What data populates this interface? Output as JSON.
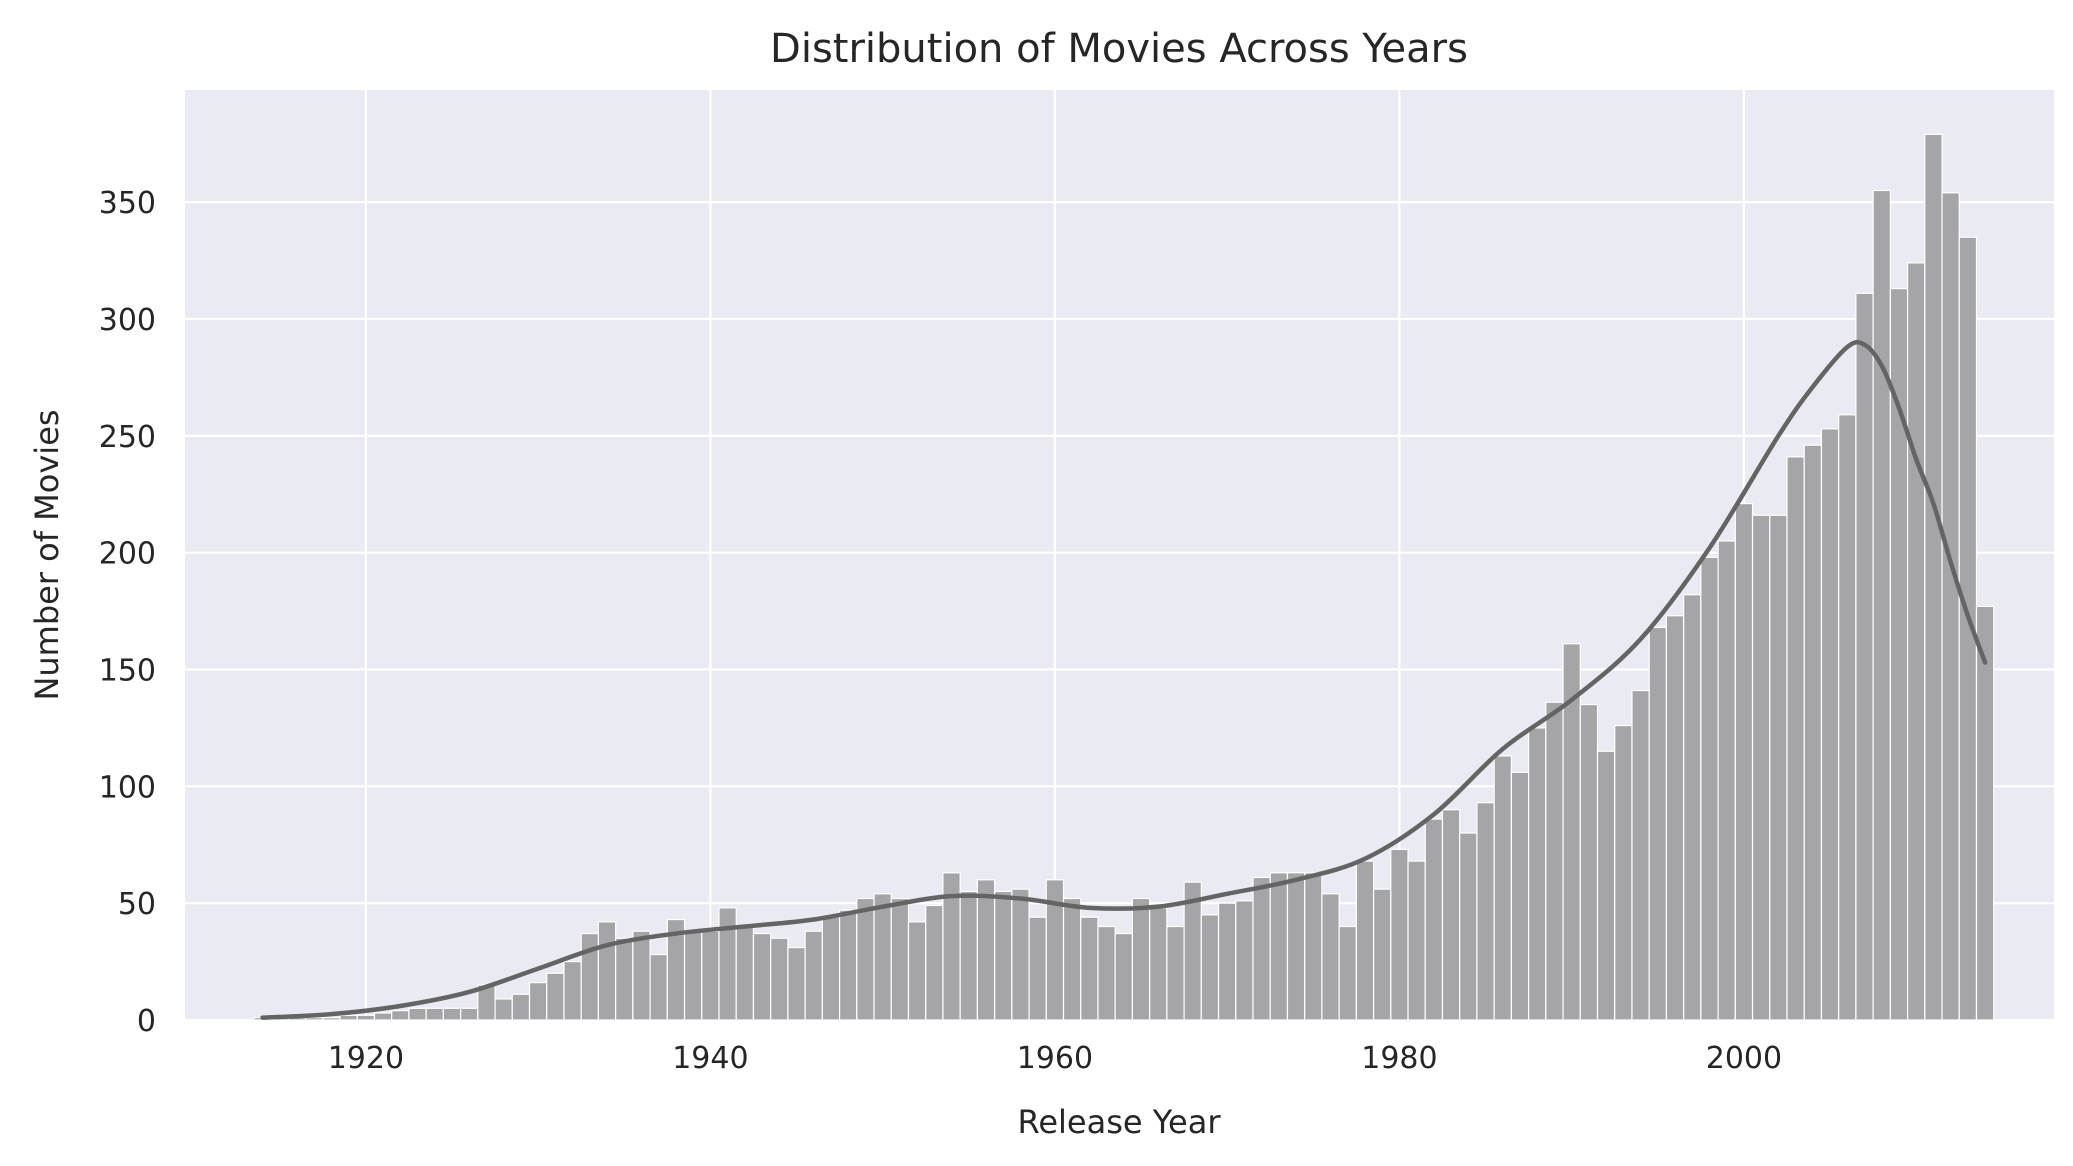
{
  "chart_data": {
    "type": "bar",
    "subtype": "histogram-with-kde",
    "title": "Distribution of Movies Across Years",
    "xlabel": "Release Year",
    "ylabel": "Number of Movies",
    "xlim": [
      1909.5,
      2018
    ],
    "ylim": [
      0,
      398
    ],
    "xticks": [
      1920,
      1940,
      1960,
      1980,
      2000
    ],
    "yticks": [
      0,
      50,
      100,
      150,
      200,
      250,
      300,
      350
    ],
    "grid": true,
    "legend": "none",
    "colors": {
      "background": "#eaeaf2",
      "grid": "#ffffff",
      "bar": "#a5a5a8",
      "bar_edge": "#ffffff",
      "kde": "#646464"
    },
    "bin_width": 1,
    "bins": [
      {
        "year": 1914,
        "count": 1
      },
      {
        "year": 1915,
        "count": 1
      },
      {
        "year": 1916,
        "count": 1
      },
      {
        "year": 1917,
        "count": 1
      },
      {
        "year": 1918,
        "count": 1
      },
      {
        "year": 1919,
        "count": 2
      },
      {
        "year": 1920,
        "count": 2
      },
      {
        "year": 1921,
        "count": 3
      },
      {
        "year": 1922,
        "count": 4
      },
      {
        "year": 1923,
        "count": 5
      },
      {
        "year": 1924,
        "count": 5
      },
      {
        "year": 1925,
        "count": 5
      },
      {
        "year": 1926,
        "count": 5
      },
      {
        "year": 1927,
        "count": 15
      },
      {
        "year": 1928,
        "count": 9
      },
      {
        "year": 1929,
        "count": 11
      },
      {
        "year": 1930,
        "count": 16
      },
      {
        "year": 1931,
        "count": 20
      },
      {
        "year": 1932,
        "count": 25
      },
      {
        "year": 1933,
        "count": 37
      },
      {
        "year": 1934,
        "count": 42
      },
      {
        "year": 1935,
        "count": 35
      },
      {
        "year": 1936,
        "count": 38
      },
      {
        "year": 1937,
        "count": 28
      },
      {
        "year": 1938,
        "count": 43
      },
      {
        "year": 1939,
        "count": 38
      },
      {
        "year": 1940,
        "count": 38
      },
      {
        "year": 1941,
        "count": 48
      },
      {
        "year": 1942,
        "count": 40
      },
      {
        "year": 1943,
        "count": 37
      },
      {
        "year": 1944,
        "count": 35
      },
      {
        "year": 1945,
        "count": 31
      },
      {
        "year": 1946,
        "count": 38
      },
      {
        "year": 1947,
        "count": 44
      },
      {
        "year": 1948,
        "count": 47
      },
      {
        "year": 1949,
        "count": 52
      },
      {
        "year": 1950,
        "count": 54
      },
      {
        "year": 1951,
        "count": 52
      },
      {
        "year": 1952,
        "count": 42
      },
      {
        "year": 1953,
        "count": 49
      },
      {
        "year": 1954,
        "count": 63
      },
      {
        "year": 1955,
        "count": 55
      },
      {
        "year": 1956,
        "count": 60
      },
      {
        "year": 1957,
        "count": 55
      },
      {
        "year": 1958,
        "count": 56
      },
      {
        "year": 1959,
        "count": 44
      },
      {
        "year": 1960,
        "count": 60
      },
      {
        "year": 1961,
        "count": 52
      },
      {
        "year": 1962,
        "count": 44
      },
      {
        "year": 1963,
        "count": 40
      },
      {
        "year": 1964,
        "count": 37
      },
      {
        "year": 1965,
        "count": 52
      },
      {
        "year": 1966,
        "count": 48
      },
      {
        "year": 1967,
        "count": 40
      },
      {
        "year": 1968,
        "count": 59
      },
      {
        "year": 1969,
        "count": 45
      },
      {
        "year": 1970,
        "count": 50
      },
      {
        "year": 1971,
        "count": 51
      },
      {
        "year": 1972,
        "count": 61
      },
      {
        "year": 1973,
        "count": 63
      },
      {
        "year": 1974,
        "count": 63
      },
      {
        "year": 1975,
        "count": 63
      },
      {
        "year": 1976,
        "count": 54
      },
      {
        "year": 1977,
        "count": 40
      },
      {
        "year": 1978,
        "count": 68
      },
      {
        "year": 1979,
        "count": 56
      },
      {
        "year": 1980,
        "count": 73
      },
      {
        "year": 1981,
        "count": 68
      },
      {
        "year": 1982,
        "count": 86
      },
      {
        "year": 1983,
        "count": 90
      },
      {
        "year": 1984,
        "count": 80
      },
      {
        "year": 1985,
        "count": 93
      },
      {
        "year": 1986,
        "count": 113
      },
      {
        "year": 1987,
        "count": 106
      },
      {
        "year": 1988,
        "count": 125
      },
      {
        "year": 1989,
        "count": 136
      },
      {
        "year": 1990,
        "count": 161
      },
      {
        "year": 1991,
        "count": 135
      },
      {
        "year": 1992,
        "count": 115
      },
      {
        "year": 1993,
        "count": 126
      },
      {
        "year": 1994,
        "count": 141
      },
      {
        "year": 1995,
        "count": 168
      },
      {
        "year": 1996,
        "count": 173
      },
      {
        "year": 1997,
        "count": 182
      },
      {
        "year": 1998,
        "count": 198
      },
      {
        "year": 1999,
        "count": 205
      },
      {
        "year": 2000,
        "count": 221
      },
      {
        "year": 2001,
        "count": 216
      },
      {
        "year": 2002,
        "count": 216
      },
      {
        "year": 2003,
        "count": 241
      },
      {
        "year": 2004,
        "count": 246
      },
      {
        "year": 2005,
        "count": 253
      },
      {
        "year": 2006,
        "count": 259
      },
      {
        "year": 2007,
        "count": 311
      },
      {
        "year": 2008,
        "count": 355
      },
      {
        "year": 2009,
        "count": 313
      },
      {
        "year": 2010,
        "count": 324
      },
      {
        "year": 2011,
        "count": 379
      },
      {
        "year": 2012,
        "count": 354
      },
      {
        "year": 2013,
        "count": 335
      },
      {
        "year": 2014,
        "count": 177
      }
    ],
    "kde": {
      "x": [
        1914,
        1918,
        1922,
        1926,
        1930,
        1934,
        1938,
        1942,
        1946,
        1950,
        1954,
        1958,
        1962,
        1966,
        1970,
        1974,
        1978,
        1982,
        1986,
        1990,
        1994,
        1998,
        2002,
        2004,
        2006,
        2007,
        2008,
        2009,
        2010,
        2011,
        2012,
        2013,
        2014
      ],
      "y": [
        1,
        2.5,
        6,
        12,
        22,
        32,
        37,
        40,
        43,
        48.5,
        53,
        52,
        48,
        48.5,
        54,
        60,
        69,
        88,
        116,
        137,
        163,
        202,
        250,
        271,
        288,
        289,
        280,
        262,
        240,
        221,
        196,
        173,
        153
      ]
    }
  }
}
